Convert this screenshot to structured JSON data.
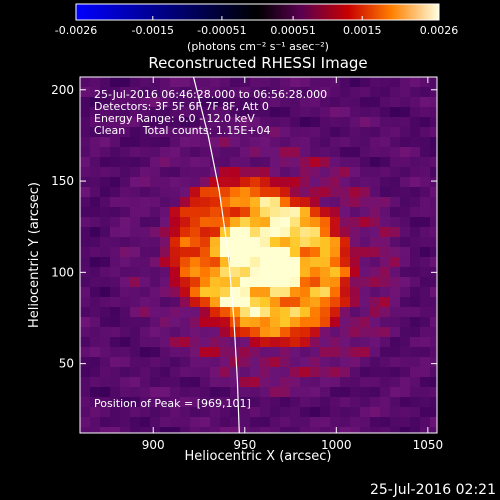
{
  "chart_data": {
    "type": "heatmap",
    "title": "Reconstructed RHESSI Image",
    "xlabel": "Heliocentric X (arcsec)",
    "ylabel": "Heliocentric Y (arcsec)",
    "xlim": [
      860,
      1055
    ],
    "ylim": [
      12,
      207
    ],
    "x_ticks": [
      900,
      950,
      1000,
      1050
    ],
    "y_ticks": [
      50,
      100,
      150,
      200
    ],
    "colorbar": {
      "min": -0.0026,
      "max": 0.0026,
      "tick_values": [
        -0.0026,
        -0.0015,
        -0.00051,
        0.00051,
        0.0015,
        0.0026
      ],
      "tick_labels": [
        "-0.0026",
        "-0.0015",
        "-0.00051",
        "0.00051",
        "0.0015",
        "0.0026"
      ],
      "units_label": "(photons cm⁻² s⁻¹ asec⁻²)"
    },
    "annotations": [
      "25-Jul-2016 06:46:28.000 to 06:56:28.000",
      "Detectors: 3F 5F 6F 7F 8F, Att 0",
      "Energy Range: 6.0 - 12.0 keV",
      "Clean     Total counts: 1.15E+04"
    ],
    "peak_label": "Position of Peak = [969,101]",
    "peak": {
      "x": 969,
      "y": 101
    },
    "secondary_peak": {
      "x": 945,
      "y": 115
    },
    "limb": [
      [
        922,
        207
      ],
      [
        930,
        175
      ],
      [
        936,
        145
      ],
      [
        941,
        110
      ],
      [
        944,
        75
      ],
      [
        946,
        40
      ],
      [
        947,
        12
      ]
    ],
    "grid": false
  },
  "timestamp": "25-Jul-2016 02:21"
}
